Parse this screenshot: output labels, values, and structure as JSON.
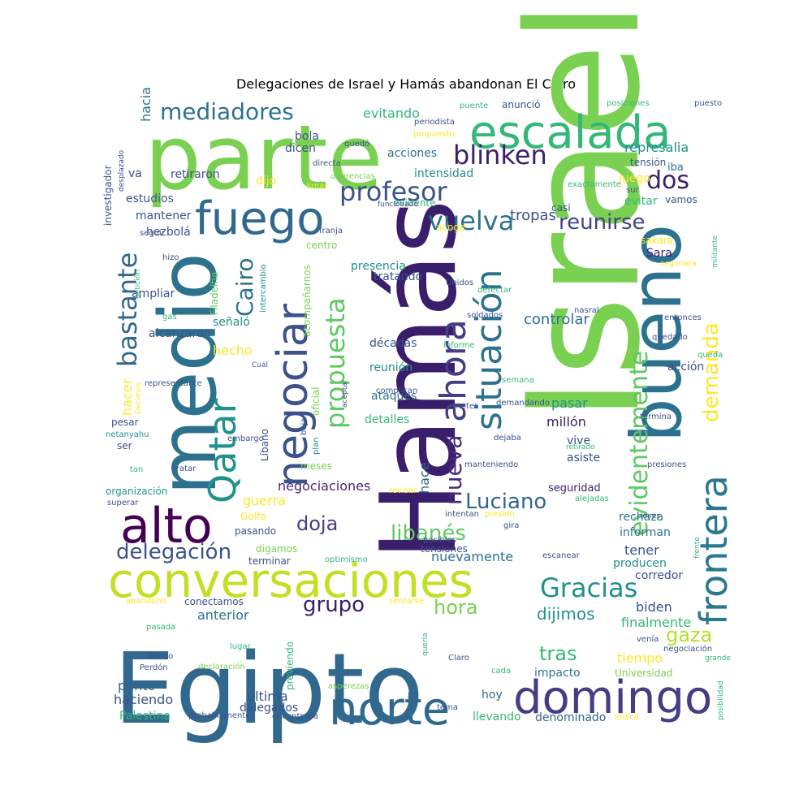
{
  "title": "Delegaciones de Israel y Hamás abandonan El Cairo",
  "words": [
    {
      "text": "Israel",
      "color": "#7ad151"
    },
    {
      "text": "Hamás",
      "color": "#3b1e6b"
    },
    {
      "text": "Egipto",
      "color": "#31688e"
    },
    {
      "text": "parte",
      "color": "#7ad151"
    },
    {
      "text": "medio",
      "color": "#2c728e"
    },
    {
      "text": "bueno",
      "color": "#2c718e"
    },
    {
      "text": "conversaciones",
      "color": "#c2df23"
    },
    {
      "text": "escalada",
      "color": "#35b779"
    },
    {
      "text": "domingo",
      "color": "#433e85"
    },
    {
      "text": "norte",
      "color": "#31688e"
    },
    {
      "text": "negociar",
      "color": "#3b528b"
    },
    {
      "text": "frontera",
      "color": "#2a788e"
    },
    {
      "text": "alto",
      "color": "#440154"
    },
    {
      "text": "situación",
      "color": "#2c728e"
    },
    {
      "text": "fuego",
      "color": "#31688e"
    },
    {
      "text": "ahora",
      "color": "#433e85"
    },
    {
      "text": "Qatar",
      "color": "#21918c"
    },
    {
      "text": "evidentemente",
      "color": "#5ec962"
    },
    {
      "text": "propuesta",
      "color": "#5ec962"
    },
    {
      "text": "Gracias",
      "color": "#21918c"
    },
    {
      "text": "vuelva",
      "color": "#2c728e"
    },
    {
      "text": "profesor",
      "color": "#3b528b"
    },
    {
      "text": "blinken",
      "color": "#3b1e6b"
    },
    {
      "text": "demanda",
      "color": "#fde725"
    },
    {
      "text": "nueva",
      "color": "#482878"
    },
    {
      "text": "mediadores",
      "color": "#2c728e"
    },
    {
      "text": "delegación",
      "color": "#3b528b"
    },
    {
      "text": "bastante",
      "color": "#31688e"
    },
    {
      "text": "libanés",
      "color": "#5ec962"
    },
    {
      "text": "Luciano",
      "color": "#31688e"
    },
    {
      "text": "dos",
      "color": "#3b1e6b"
    },
    {
      "text": "Cairo",
      "color": "#2c728e"
    },
    {
      "text": "reunirse",
      "color": "#414487"
    },
    {
      "text": "grupo",
      "color": "#3b1e6b"
    },
    {
      "text": "hora",
      "color": "#7ad151"
    },
    {
      "text": "gaza",
      "color": "#b5de2b"
    },
    {
      "text": "tras",
      "color": "#35b779"
    },
    {
      "text": "doja",
      "color": "#433e85"
    },
    {
      "text": "dijimos",
      "color": "#21918c"
    },
    {
      "text": "controlar",
      "color": "#2c728e"
    },
    {
      "text": "tropas",
      "color": "#3b528b"
    },
    {
      "text": "hecho",
      "color": "#fde725"
    },
    {
      "text": "negociaciones",
      "color": "#482878"
    },
    {
      "text": "nuevamente",
      "color": "#2c728e"
    },
    {
      "text": "represalia",
      "color": "#21918c"
    },
    {
      "text": "anterior",
      "color": "#2c728e"
    },
    {
      "text": "última",
      "color": "#3b528b"
    },
    {
      "text": "hace",
      "color": "#31688e"
    },
    {
      "text": "evitando",
      "color": "#35b779"
    },
    {
      "text": "millón",
      "color": "#3b1e6b"
    },
    {
      "text": "hacia",
      "color": "#2c728e"
    },
    {
      "text": "hacer",
      "color": "#fde725"
    },
    {
      "text": "guerra",
      "color": "#fde725"
    },
    {
      "text": "pasar",
      "color": "#21918c"
    },
    {
      "text": "biden",
      "color": "#3b528b"
    },
    {
      "text": "tener",
      "color": "#3b528b"
    },
    {
      "text": "finalmente",
      "color": "#35b779"
    },
    {
      "text": "tiempo",
      "color": "#fde725"
    },
    {
      "text": "impacto",
      "color": "#2c728e"
    },
    {
      "text": "haciendo",
      "color": "#3b528b"
    },
    {
      "text": "punto",
      "color": "#31688e"
    },
    {
      "text": "hoy",
      "color": "#31688e"
    },
    {
      "text": "llevando",
      "color": "#35b779"
    },
    {
      "text": "denominado",
      "color": "#31688e"
    },
    {
      "text": "delegados",
      "color": "#3b528b"
    },
    {
      "text": "Palestina",
      "color": "#35b779"
    },
    {
      "text": "Sara",
      "color": "#3b1e6b"
    },
    {
      "text": "corredor",
      "color": "#3b528b"
    },
    {
      "text": "producen",
      "color": "#21918c"
    },
    {
      "text": "informan",
      "color": "#2c728e"
    },
    {
      "text": "rechaza",
      "color": "#2c728e"
    },
    {
      "text": "asiste",
      "color": "#3b528b"
    },
    {
      "text": "vive",
      "color": "#3b528b"
    },
    {
      "text": "seguridad",
      "color": "#3b1e6b"
    },
    {
      "text": "detalles",
      "color": "#35b779"
    },
    {
      "text": "ataques",
      "color": "#2c728e"
    },
    {
      "text": "reunión",
      "color": "#21918c"
    },
    {
      "text": "décadas",
      "color": "#3b528b"
    },
    {
      "text": "presencia",
      "color": "#21918c"
    },
    {
      "text": "tratando",
      "color": "#3b528b"
    },
    {
      "text": "intensidad",
      "color": "#21918c"
    },
    {
      "text": "acciones",
      "color": "#2c728e"
    },
    {
      "text": "dicen",
      "color": "#3b528b"
    },
    {
      "text": "bola",
      "color": "#3b528b"
    },
    {
      "text": "dijo",
      "color": "#fde725"
    },
    {
      "text": "va",
      "color": "#3b528b"
    },
    {
      "text": "retiraron",
      "color": "#3b528b"
    },
    {
      "text": "estudios",
      "color": "#3b528b"
    },
    {
      "text": "mantener",
      "color": "#3b528b"
    },
    {
      "text": "hezbolá",
      "color": "#3b528b"
    },
    {
      "text": "ampliar",
      "color": "#3b528b"
    },
    {
      "text": "alcanzaron",
      "color": "#3b528b"
    },
    {
      "text": "señaló",
      "color": "#21918c"
    },
    {
      "text": "investigador",
      "color": "#3b528b"
    },
    {
      "text": "anunció",
      "color": "#3b528b"
    },
    {
      "text": "evitar",
      "color": "#35b779"
    },
    {
      "text": "juego",
      "color": "#fde725"
    },
    {
      "text": "tensión",
      "color": "#3b528b"
    },
    {
      "text": "iba",
      "color": "#2c728e"
    },
    {
      "text": "vamos",
      "color": "#3b528b"
    },
    {
      "text": "evidente",
      "color": "#35b779"
    },
    {
      "text": "casi",
      "color": "#3b528b"
    },
    {
      "text": "acción",
      "color": "#3b528b"
    },
    {
      "text": "pesar",
      "color": "#3b528b"
    },
    {
      "text": "ser",
      "color": "#3b528b"
    },
    {
      "text": "organización",
      "color": "#21918c"
    },
    {
      "text": "Golfo",
      "color": "#fde725"
    },
    {
      "text": "pasando",
      "color": "#3b528b"
    },
    {
      "text": "digamos",
      "color": "#7ad151"
    },
    {
      "text": "terminar",
      "color": "#3b528b"
    },
    {
      "text": "conectamos",
      "color": "#3b528b"
    },
    {
      "text": "meses",
      "color": "#7ad151"
    },
    {
      "text": "tensiones",
      "color": "#3b528b"
    },
    {
      "text": "Universidad",
      "color": "#7ad151"
    },
    {
      "text": "Líbano",
      "color": "#3b528b"
    },
    {
      "text": "Filadelfia",
      "color": "#5ec962"
    },
    {
      "text": "acompañarnos",
      "color": "#7ad151"
    },
    {
      "text": "oficial",
      "color": "#7ad151"
    },
    {
      "text": "previendo",
      "color": "#35b779"
    },
    {
      "text": "centro",
      "color": "#7ad151"
    },
    {
      "text": "acoge",
      "color": "#fde725"
    },
    {
      "text": "sakara",
      "color": "#fde725"
    },
    {
      "text": "Unidos",
      "color": "#3b528b"
    },
    {
      "text": "periodista",
      "color": "#3b528b"
    },
    {
      "text": "puente",
      "color": "#35b779"
    },
    {
      "text": "posiciones",
      "color": "#35b779"
    },
    {
      "text": "puesto",
      "color": "#3b528b"
    },
    {
      "text": "propuesto",
      "color": "#fde725"
    },
    {
      "text": "quedó",
      "color": "#3b528b"
    },
    {
      "text": "directa",
      "color": "#3b528b"
    },
    {
      "text": "diferencias",
      "color": "#7ad151"
    },
    {
      "text": "limar",
      "color": "#fde725"
    },
    {
      "text": "exactamente",
      "color": "#35b779"
    },
    {
      "text": "sur",
      "color": "#3b528b"
    },
    {
      "text": "funcionado",
      "color": "#3b528b"
    },
    {
      "text": "franja",
      "color": "#3b528b"
    },
    {
      "text": "intercambio",
      "color": "#21918c"
    },
    {
      "text": "desplazado",
      "color": "#3b528b"
    },
    {
      "text": "seguir",
      "color": "#3b528b"
    },
    {
      "text": "hizo",
      "color": "#3b528b"
    },
    {
      "text": "petición",
      "color": "#35b779"
    },
    {
      "text": "gas",
      "color": "#35b779"
    },
    {
      "text": "Cuál",
      "color": "#3b528b"
    },
    {
      "text": "representante",
      "color": "#3b528b"
    },
    {
      "text": "Decimos",
      "color": "#fde725"
    },
    {
      "text": "netanyahu",
      "color": "#21918c"
    },
    {
      "text": "embargo",
      "color": "#3b528b"
    },
    {
      "text": "tan",
      "color": "#35b779"
    },
    {
      "text": "tratar",
      "color": "#3b528b"
    },
    {
      "text": "superar",
      "color": "#3b528b"
    },
    {
      "text": "baja",
      "color": "#3b528b"
    },
    {
      "text": "plan",
      "color": "#21918c"
    },
    {
      "text": "detectar",
      "color": "#35b779"
    },
    {
      "text": "soldados",
      "color": "#3b528b"
    },
    {
      "text": "informe",
      "color": "#35b779"
    },
    {
      "text": "aceptar",
      "color": "#3b528b"
    },
    {
      "text": "complican",
      "color": "#3b528b"
    },
    {
      "text": "meter",
      "color": "#3b528b"
    },
    {
      "text": "demandando",
      "color": "#3b528b"
    },
    {
      "text": "semana",
      "color": "#35b779"
    },
    {
      "text": "dejaba",
      "color": "#3b528b"
    },
    {
      "text": "manteniendo",
      "color": "#3b528b"
    },
    {
      "text": "revisar",
      "color": "#fde725"
    },
    {
      "text": "intentan",
      "color": "#3b528b"
    },
    {
      "text": "posibles",
      "color": "#3b528b"
    },
    {
      "text": "presión",
      "color": "#fde725"
    },
    {
      "text": "gira",
      "color": "#3b528b"
    },
    {
      "text": "optimismo",
      "color": "#35b779"
    },
    {
      "text": "escanear",
      "color": "#3b528b"
    },
    {
      "text": "sentarse",
      "color": "#fde725"
    },
    {
      "text": "abandonó",
      "color": "#fde725"
    },
    {
      "text": "pasada",
      "color": "#35b779"
    },
    {
      "text": "lugar",
      "color": "#35b779"
    },
    {
      "text": "dando",
      "color": "#3b528b"
    },
    {
      "text": "Perdón",
      "color": "#3b528b"
    },
    {
      "text": "declaración",
      "color": "#7ad151"
    },
    {
      "text": "quería",
      "color": "#35b779"
    },
    {
      "text": "Claro",
      "color": "#3b528b"
    },
    {
      "text": "cada",
      "color": "#35b779"
    },
    {
      "text": "asperezas",
      "color": "#7ad151"
    },
    {
      "text": "tema",
      "color": "#3b528b"
    },
    {
      "text": "probablemente",
      "color": "#3b528b"
    },
    {
      "text": "encontraba",
      "color": "#3b528b"
    },
    {
      "text": "indicó",
      "color": "#fde725"
    },
    {
      "text": "posibilidad",
      "color": "#35b779"
    },
    {
      "text": "grande",
      "color": "#35b779"
    },
    {
      "text": "negociación",
      "color": "#3b528b"
    },
    {
      "text": "venía",
      "color": "#3b528b"
    },
    {
      "text": "iones",
      "color": "#3b528b"
    },
    {
      "text": "frente",
      "color": "#35b779"
    },
    {
      "text": "presiones",
      "color": "#3b528b"
    },
    {
      "text": "retirado",
      "color": "#35b779"
    },
    {
      "text": "termina",
      "color": "#3b528b"
    },
    {
      "text": "queda",
      "color": "#35b779"
    },
    {
      "text": "quedado",
      "color": "#3b528b"
    },
    {
      "text": "entonces",
      "color": "#3b528b"
    },
    {
      "text": "nasral",
      "color": "#3b528b"
    },
    {
      "text": "militante",
      "color": "#35b779"
    },
    {
      "text": "negociara",
      "color": "#fde725"
    },
    {
      "text": "alejadas",
      "color": "#35b779"
    }
  ]
}
